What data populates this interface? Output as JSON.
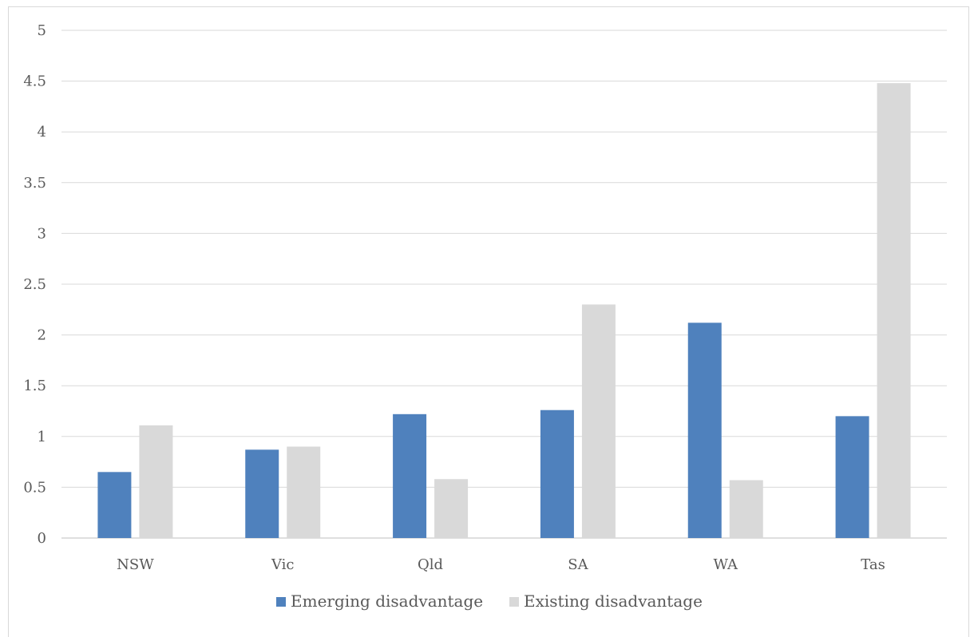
{
  "chart_data": {
    "type": "bar",
    "title": "",
    "xlabel": "",
    "ylabel": "",
    "categories": [
      "NSW",
      "Vic",
      "Qld",
      "SA",
      "WA",
      "Tas"
    ],
    "series": [
      {
        "name": "Emerging disadvantage",
        "values": [
          0.65,
          0.87,
          1.22,
          1.26,
          2.12,
          1.2
        ],
        "color": "#4f81bd"
      },
      {
        "name": "Existing disadvantage",
        "values": [
          1.11,
          0.9,
          0.58,
          2.3,
          0.57,
          4.48
        ],
        "color": "#d9d9d9"
      }
    ],
    "ylim": [
      0,
      5
    ],
    "yticks": [
      "0",
      "0.5",
      "1",
      "1.5",
      "2",
      "2.5",
      "3",
      "3.5",
      "4",
      "4.5",
      "5"
    ],
    "grid": true,
    "legend_position": "bottom"
  }
}
